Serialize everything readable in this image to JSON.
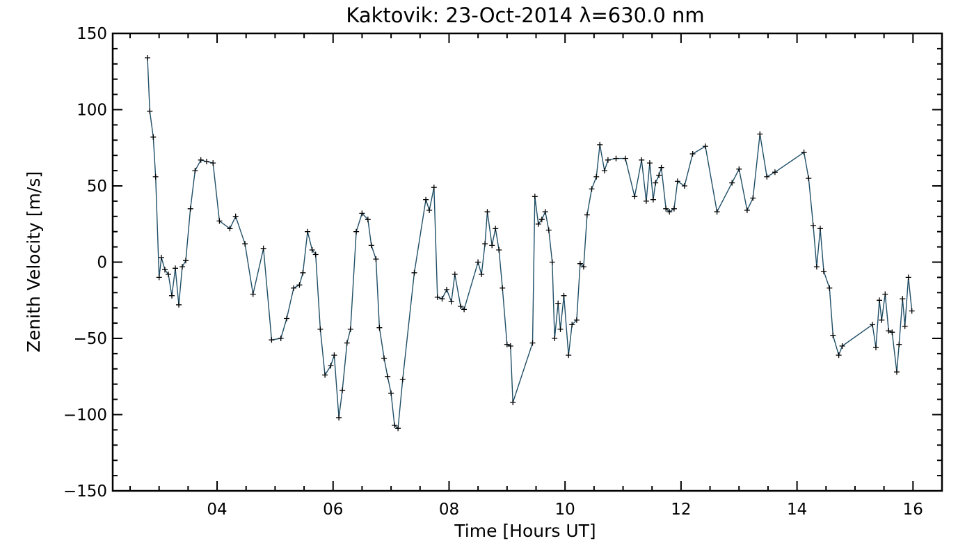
{
  "chart_data": {
    "type": "line",
    "title": "Kaktovik: 23-Oct-2014 λ=630.0 nm",
    "xlabel": "Time [Hours UT]",
    "ylabel": "Zenith Velocity [m/s]",
    "xlim": [
      2.2,
      16.5
    ],
    "ylim": [
      -150,
      150
    ],
    "x_ticks": [
      4,
      6,
      8,
      10,
      12,
      14,
      16
    ],
    "x_tick_labels": [
      "04",
      "06",
      "08",
      "10",
      "12",
      "14",
      "16"
    ],
    "y_ticks": [
      -150,
      -100,
      -50,
      0,
      50,
      100,
      150
    ],
    "y_tick_labels": [
      "−150",
      "−100",
      "−50",
      "0",
      "50",
      "100",
      "150"
    ],
    "grid": false,
    "line_color": "#1f4e66",
    "marker": "+",
    "series": [
      {
        "x": [
          2.8,
          2.84,
          2.9,
          2.94,
          3.0,
          3.04,
          3.1,
          3.16,
          3.22,
          3.28,
          3.34,
          3.4,
          3.46,
          3.54,
          3.62,
          3.72,
          3.82,
          3.93,
          4.04,
          4.22,
          4.32,
          4.48,
          4.62,
          4.8,
          4.94,
          5.1,
          5.2,
          5.32,
          5.42,
          5.48,
          5.56,
          5.64,
          5.7,
          5.78,
          5.86,
          5.96,
          6.02,
          6.1,
          6.16,
          6.24,
          6.3,
          6.4,
          6.5,
          6.6,
          6.66,
          6.74,
          6.8,
          6.88,
          6.94,
          7.0,
          7.06,
          7.12,
          7.2,
          7.4,
          7.6,
          7.66,
          7.74,
          7.8,
          7.88,
          7.96,
          8.04,
          8.1,
          8.2,
          8.26,
          8.5,
          8.56,
          8.62,
          8.66,
          8.74,
          8.8,
          8.86,
          8.92,
          9.0,
          9.06,
          9.1,
          9.44,
          9.48,
          9.54,
          9.6,
          9.66,
          9.72,
          9.78,
          9.82,
          9.88,
          9.92,
          9.98,
          10.06,
          10.12,
          10.2,
          10.26,
          10.32,
          10.38,
          10.46,
          10.54,
          10.6,
          10.68,
          10.74,
          10.88,
          11.04,
          11.2,
          11.32,
          11.4,
          11.46,
          11.52,
          11.56,
          11.62,
          11.66,
          11.74,
          11.8,
          11.88,
          11.94,
          12.06,
          12.2,
          12.42,
          12.62,
          12.88,
          13.0,
          13.14,
          13.24,
          13.36,
          13.48,
          13.62,
          14.12,
          14.2,
          14.28,
          14.34,
          14.4,
          14.46,
          14.56,
          14.62,
          14.72,
          14.78,
          15.3,
          15.36,
          15.42,
          15.46,
          15.52,
          15.58,
          15.64,
          15.72,
          15.76,
          15.82,
          15.86,
          15.92,
          15.98
        ],
        "y": [
          134,
          99,
          82,
          56,
          -10,
          3,
          -5,
          -8,
          -22,
          -4,
          -28,
          -3,
          1,
          35,
          60,
          67,
          66,
          65,
          27,
          22,
          30,
          12,
          -21,
          9,
          -51,
          -50,
          -37,
          -17,
          -15,
          -7,
          20,
          8,
          5,
          -44,
          -74,
          -68,
          -61,
          -102,
          -84,
          -53,
          -44,
          20,
          32,
          28,
          11,
          2,
          -43,
          -63,
          -75,
          -86,
          -107,
          -109,
          -77,
          -7,
          41,
          34,
          49,
          -23,
          -24,
          -18,
          -26,
          -8,
          -29,
          -31,
          0,
          -8,
          12,
          33,
          11,
          22,
          8,
          -17,
          -54,
          -55,
          -92,
          -53,
          43,
          25,
          28,
          33,
          21,
          0,
          -50,
          -27,
          -44,
          -22,
          -61,
          -41,
          -38,
          -1,
          -3,
          31,
          48,
          56,
          77,
          60,
          67,
          68,
          68,
          43,
          67,
          40,
          65,
          41,
          52,
          57,
          62,
          35,
          33,
          35,
          53,
          50,
          71,
          76,
          33,
          52,
          61,
          34,
          42,
          84,
          56,
          59,
          72,
          55,
          24,
          -3,
          22,
          -6,
          -17,
          -48,
          -61,
          -55,
          -41,
          -56,
          -25,
          -38,
          -21,
          -45,
          -46,
          -72,
          -54,
          -24,
          -42,
          -10,
          -32
        ]
      }
    ]
  }
}
